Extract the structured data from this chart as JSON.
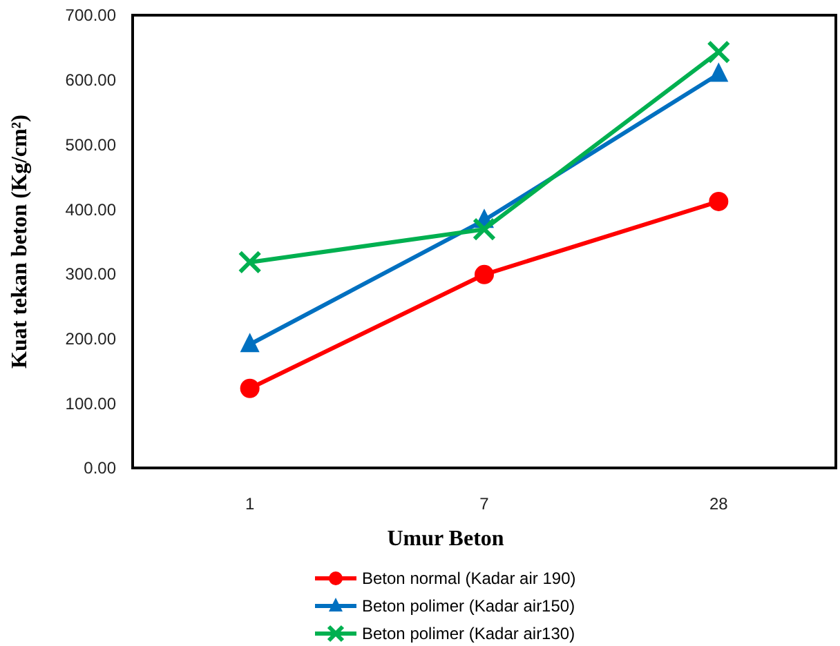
{
  "chart_data": {
    "type": "line",
    "xlabel": "Umur Beton",
    "ylabel": "Kuat tekan beton (Kg/cm²)",
    "categories": [
      "1",
      "7",
      "28"
    ],
    "ylim": [
      0,
      700
    ],
    "yticks": [
      {
        "value": 0,
        "label": "0.00"
      },
      {
        "value": 100,
        "label": "100.00"
      },
      {
        "value": 200,
        "label": "200.00"
      },
      {
        "value": 300,
        "label": "300.00"
      },
      {
        "value": 400,
        "label": "400.00"
      },
      {
        "value": 500,
        "label": "500.00"
      },
      {
        "value": 600,
        "label": "600.00"
      },
      {
        "value": 700,
        "label": "700.00"
      }
    ],
    "grid": false,
    "legend": "bottom",
    "line_style": "solid",
    "series": [
      {
        "name": "Beton normal (Kadar air 190)",
        "color": "#ff0000",
        "marker": "circle",
        "values": [
          123,
          299,
          412
        ]
      },
      {
        "name": "Beton polimer (Kadar air150)",
        "color": "#0070c0",
        "marker": "triangle",
        "values": [
          191,
          383,
          609
        ]
      },
      {
        "name": "Beton polimer (Kadar air130)",
        "color": "#00b050",
        "marker": "cross",
        "values": [
          318,
          369,
          643
        ]
      }
    ]
  }
}
